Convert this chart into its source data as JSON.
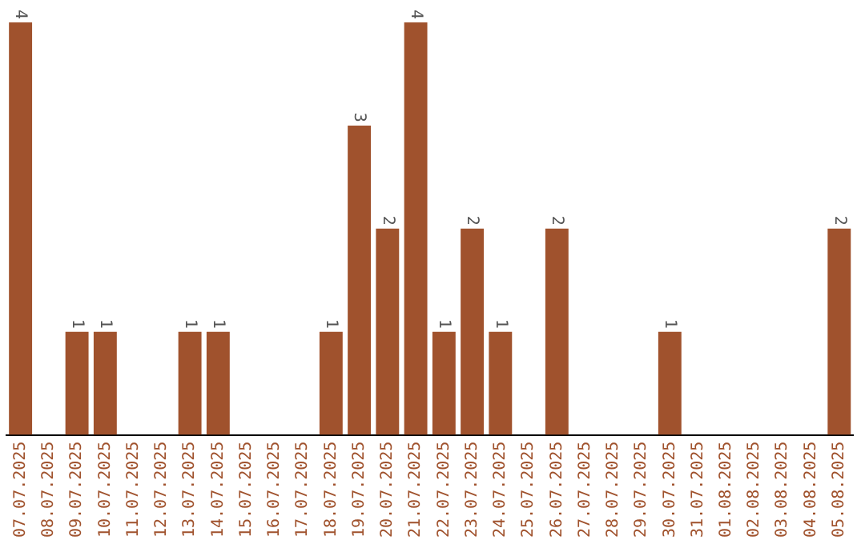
{
  "chart_data": {
    "type": "bar",
    "categories": [
      "07.07.2025",
      "08.07.2025",
      "09.07.2025",
      "10.07.2025",
      "11.07.2025",
      "12.07.2025",
      "13.07.2025",
      "14.07.2025",
      "15.07.2025",
      "16.07.2025",
      "17.07.2025",
      "18.07.2025",
      "19.07.2025",
      "20.07.2025",
      "21.07.2025",
      "22.07.2025",
      "23.07.2025",
      "24.07.2025",
      "25.07.2025",
      "26.07.2025",
      "27.07.2025",
      "28.07.2025",
      "29.07.2025",
      "30.07.2025",
      "31.07.2025",
      "01.08.2025",
      "02.08.2025",
      "03.08.2025",
      "04.08.2025",
      "05.08.2025"
    ],
    "values": [
      4,
      0,
      1,
      1,
      0,
      0,
      1,
      1,
      0,
      0,
      0,
      1,
      3,
      2,
      4,
      1,
      2,
      1,
      0,
      2,
      0,
      0,
      0,
      1,
      0,
      0,
      0,
      0,
      0,
      2
    ],
    "value_labels": [
      "4",
      null,
      "1",
      "1",
      null,
      null,
      "1",
      "1",
      null,
      null,
      null,
      "1",
      "3",
      "2",
      "4",
      "1",
      "2",
      "1",
      null,
      "2",
      null,
      null,
      null,
      "1",
      null,
      null,
      null,
      null,
      null,
      "2"
    ],
    "color": "#a0522d",
    "grid": false,
    "legend": false,
    "tick_labels": "x"
  }
}
